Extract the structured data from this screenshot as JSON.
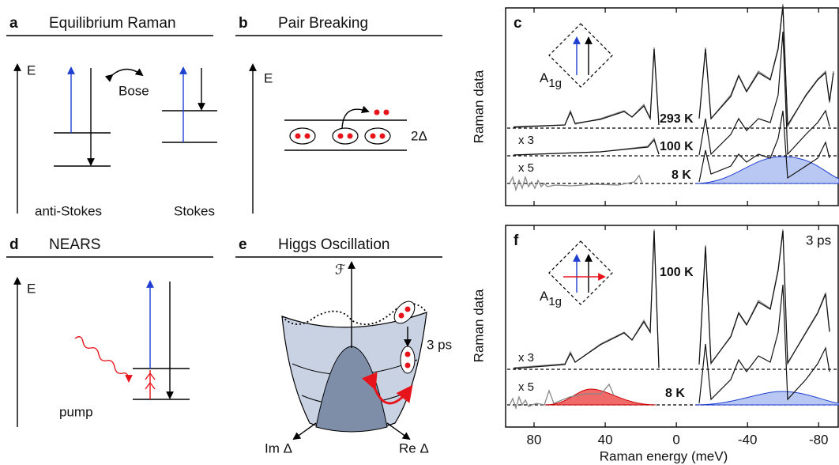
{
  "panels": {
    "a": {
      "label": "a",
      "title": "Equilibrium Raman",
      "axis": "E",
      "bose": "Bose",
      "anti_stokes": "anti-Stokes",
      "stokes": "Stokes"
    },
    "b": {
      "label": "b",
      "title": "Pair Breaking",
      "axis": "E",
      "gap": "2Δ"
    },
    "c": {
      "label": "c",
      "ylabel": "Raman data",
      "symmetry": "A",
      "symmetry_sub": "1g",
      "temperatures": [
        "293 K",
        "100 K",
        "8 K"
      ],
      "factors": [
        "x 3",
        "x 5"
      ]
    },
    "d": {
      "label": "d",
      "title": "NEARS",
      "axis": "E",
      "pump": "pump"
    },
    "e": {
      "label": "e",
      "title": "Higgs Oscillation",
      "axis": "ℱ",
      "delay": "3 ps",
      "im": "Im Δ",
      "re": "Re Δ"
    },
    "f": {
      "label": "f",
      "ylabel": "Raman data",
      "symmetry": "A",
      "symmetry_sub": "1g",
      "delay": "3 ps",
      "temperatures": [
        "100 K",
        "8 K"
      ],
      "factors": [
        "x 3",
        "x 5"
      ]
    }
  },
  "x_axis": {
    "label": "Raman energy (meV)",
    "xlim": [
      96,
      -91
    ],
    "xticks": [
      80,
      40,
      0,
      -40,
      -80
    ]
  }
}
